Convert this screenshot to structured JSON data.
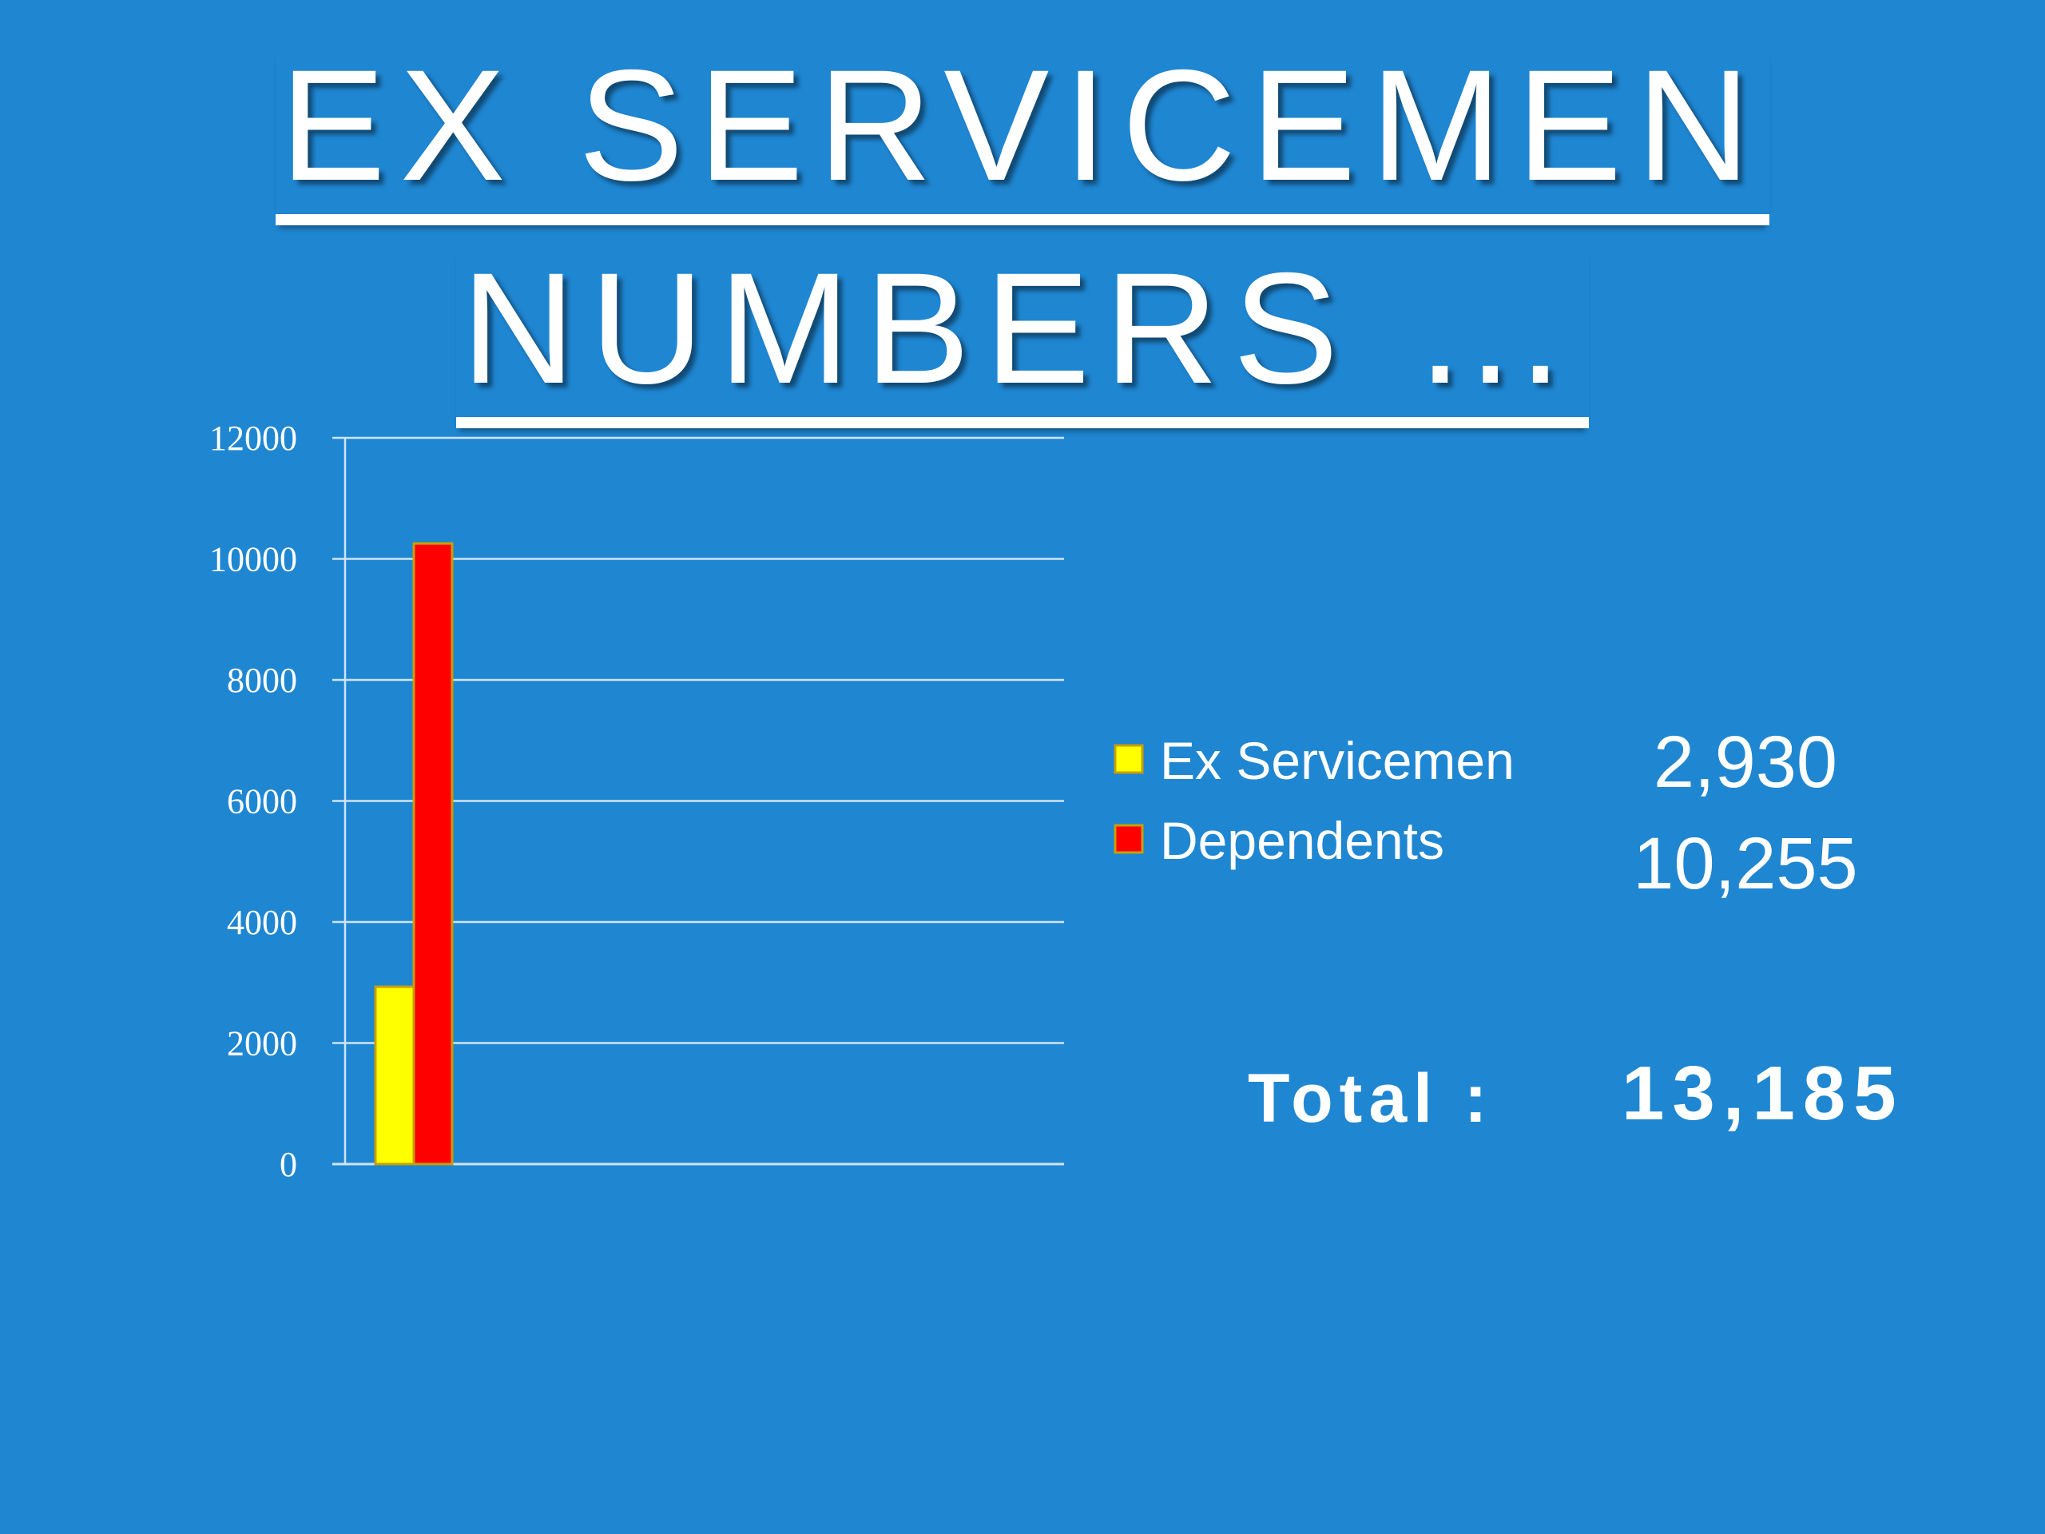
{
  "slide": {
    "title_line1": "EX SERVICEMEN",
    "title_line2": "NUMBERS …",
    "background_color": "#1f86d2"
  },
  "chart_data": {
    "type": "bar",
    "categories": [
      ""
    ],
    "series": [
      {
        "name": "Ex Servicemen",
        "values": [
          2930
        ],
        "color": "#ffff00"
      },
      {
        "name": "Dependents",
        "values": [
          10255
        ],
        "color": "#ff0000"
      }
    ],
    "ylim": [
      0,
      12000
    ],
    "yticks": [
      0,
      2000,
      4000,
      6000,
      8000,
      10000,
      12000
    ],
    "ytick_labels": [
      "0",
      "2000",
      "4000",
      "6000",
      "8000",
      "10000",
      "12000"
    ],
    "grid": true,
    "legend_position": "right",
    "xlabel": "",
    "ylabel": ""
  },
  "summary": {
    "values": [
      "2,930",
      "10,255"
    ],
    "total_label": "Total :",
    "total_value": "13,185"
  }
}
